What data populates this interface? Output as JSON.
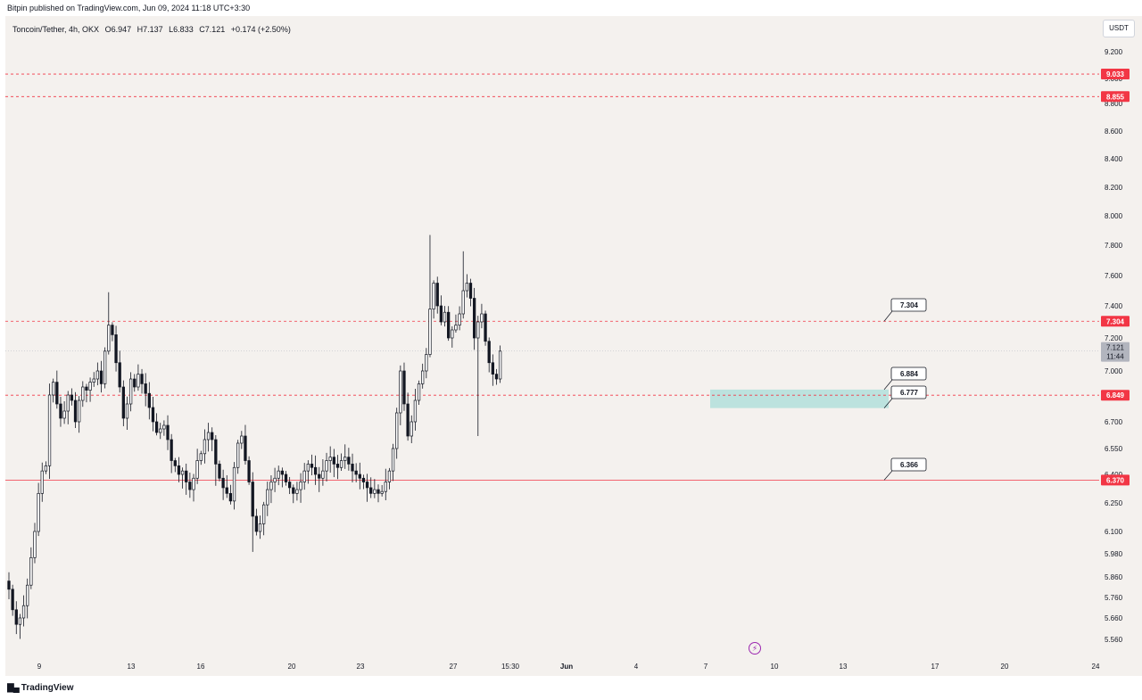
{
  "header": {
    "published": "Bitpin published on TradingView.com,  Jun 09, 2024 11:18 UTC+3:30"
  },
  "symbol": {
    "name": "Toncoin/Tether, 4h, OKX",
    "open": "O6.947",
    "high": "H7.137",
    "low": "L6.833",
    "close": "C7.121",
    "change": "+0.174 (+2.50%)"
  },
  "currency_button": "USDT",
  "footer": {
    "brand": "TradingView"
  },
  "icons": {
    "logo": "tradingview-logo-icon",
    "bolt": "lightning-bolt-icon"
  },
  "colors": {
    "background": "#f4f1ee",
    "up_candle": "#ffffff",
    "down_candle": "#131722",
    "level_line": "#f23645",
    "zone": "#b2dfdb",
    "axis_text": "#131722"
  },
  "chart_data": {
    "type": "candlestick",
    "title": "Toncoin/Tether, 4h, OKX",
    "ylim": [
      5.5,
      9.4
    ],
    "y_ticks": [
      "5.560",
      "5.660",
      "5.760",
      "5.860",
      "5.980",
      "6.100",
      "6.250",
      "6.400",
      "6.550",
      "6.700",
      "6.850",
      "7.000",
      "7.200",
      "7.400",
      "7.600",
      "7.800",
      "8.000",
      "8.200",
      "8.400",
      "8.600",
      "8.800",
      "9.000",
      "9.200"
    ],
    "x_ticks": [
      "9",
      "13",
      "16",
      "20",
      "23",
      "27",
      "15:30",
      "Jun",
      "4",
      "7",
      "10",
      "13",
      "17",
      "20",
      "24"
    ],
    "horizontal_levels": [
      {
        "value": 9.033,
        "label": "9.033",
        "style": "dashed"
      },
      {
        "value": 8.855,
        "label": "8.855",
        "style": "dashed"
      },
      {
        "value": 7.304,
        "label": "7.304",
        "style": "dashed"
      },
      {
        "value": 6.849,
        "label": "6.849",
        "style": "dashed"
      },
      {
        "value": 6.37,
        "label": "6.370",
        "style": "solid"
      }
    ],
    "current_price": {
      "value": 7.121,
      "label": "7.121",
      "countdown": "11:44"
    },
    "zone": {
      "from": 6.777,
      "to": 6.884
    },
    "callouts": [
      "7.304",
      "6.884",
      "6.777",
      "6.366"
    ],
    "close_path": [
      5.8,
      5.7,
      5.63,
      5.66,
      5.72,
      5.82,
      5.96,
      6.1,
      6.3,
      6.42,
      6.45,
      6.85,
      6.93,
      6.8,
      6.72,
      6.76,
      6.85,
      6.82,
      6.7,
      6.82,
      6.9,
      6.88,
      6.93,
      6.95,
      7.0,
      6.92,
      7.12,
      7.28,
      7.22,
      7.05,
      6.9,
      6.72,
      6.8,
      6.95,
      6.9,
      6.98,
      6.92,
      6.86,
      6.78,
      6.7,
      6.64,
      6.66,
      6.68,
      6.6,
      6.48,
      6.45,
      6.4,
      6.42,
      6.36,
      6.32,
      6.38,
      6.48,
      6.52,
      6.6,
      6.64,
      6.6,
      6.46,
      6.38,
      6.33,
      6.3,
      6.26,
      6.44,
      6.58,
      6.62,
      6.48,
      6.36,
      6.18,
      6.1,
      6.14,
      6.24,
      6.32,
      6.36,
      6.38,
      6.42,
      6.4,
      6.36,
      6.33,
      6.3,
      6.32,
      6.36,
      6.42,
      6.46,
      6.44,
      6.4,
      6.38,
      6.42,
      6.48,
      6.5,
      6.46,
      6.44,
      6.48,
      6.5,
      6.46,
      6.42,
      6.4,
      6.38,
      6.36,
      6.33,
      6.3,
      6.32,
      6.3,
      6.31,
      6.36,
      6.42,
      6.55,
      6.75,
      7.0,
      6.8,
      6.62,
      6.7,
      6.82,
      6.92,
      7.0,
      7.1,
      7.38,
      7.55,
      7.4,
      7.3,
      7.36,
      7.2,
      7.25,
      7.28,
      7.35,
      7.5,
      7.55,
      7.45,
      7.2,
      7.3,
      7.35,
      7.18,
      7.05,
      6.98,
      6.95,
      7.12
    ]
  }
}
